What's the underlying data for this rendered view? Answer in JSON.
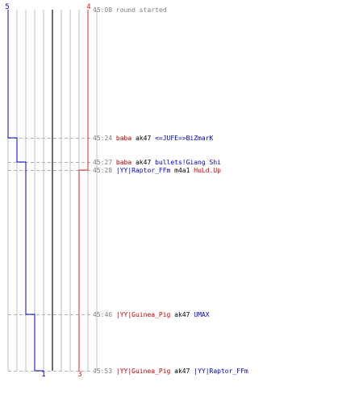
{
  "chart_data": {
    "type": "line",
    "title": "",
    "xlabel": "",
    "ylabel": "",
    "colors": {
      "blue_team": "#0000cc",
      "red_team": "#e02020",
      "killer_blue": "#0000cc",
      "killer_red": "#cc0000",
      "weapon": "#000000",
      "time": "#808080",
      "grid": "#bdbdbd",
      "center": "#6e6e6e",
      "dash": "#b0b0b0"
    },
    "top_counts": {
      "blue": "5",
      "red": "4"
    },
    "bottom_counts": {
      "blue": "1",
      "red": "3"
    },
    "series": [
      {
        "name": "blue",
        "x": [
          "45:08",
          "45:24",
          "45:27",
          "45:46",
          "45:53"
        ],
        "values": [
          5,
          4,
          3,
          2,
          1
        ]
      },
      {
        "name": "red",
        "x": [
          "45:08",
          "45:28"
        ],
        "values": [
          4,
          3
        ]
      }
    ],
    "events": [
      {
        "time": "45:08",
        "text": "round started",
        "type": "start"
      },
      {
        "time": "45:24",
        "killer": "baba",
        "killer_team": "red",
        "weapon": "ak47",
        "victim": "<=JUFE=>BiZmarK",
        "victim_team": "blue"
      },
      {
        "time": "45:27",
        "killer": "baba",
        "killer_team": "red",
        "weapon": "ak47",
        "victim": "bullets!Giang Shi",
        "victim_team": "blue"
      },
      {
        "time": "45:28",
        "killer": "|YY|Raptor_FFm",
        "killer_team": "blue",
        "weapon": "m4a1",
        "victim": "HuLd.Up",
        "victim_team": "red"
      },
      {
        "time": "45:46",
        "killer": "|YY|Guinea_Pig",
        "killer_team": "red",
        "weapon": "ak47",
        "victim": "UMAX",
        "victim_team": "blue"
      },
      {
        "time": "45:53",
        "killer": "|YY|Guinea_Pig",
        "killer_team": "red",
        "weapon": "ak47",
        "victim": "|YY|Raptor_FFm",
        "victim_team": "blue"
      }
    ]
  }
}
